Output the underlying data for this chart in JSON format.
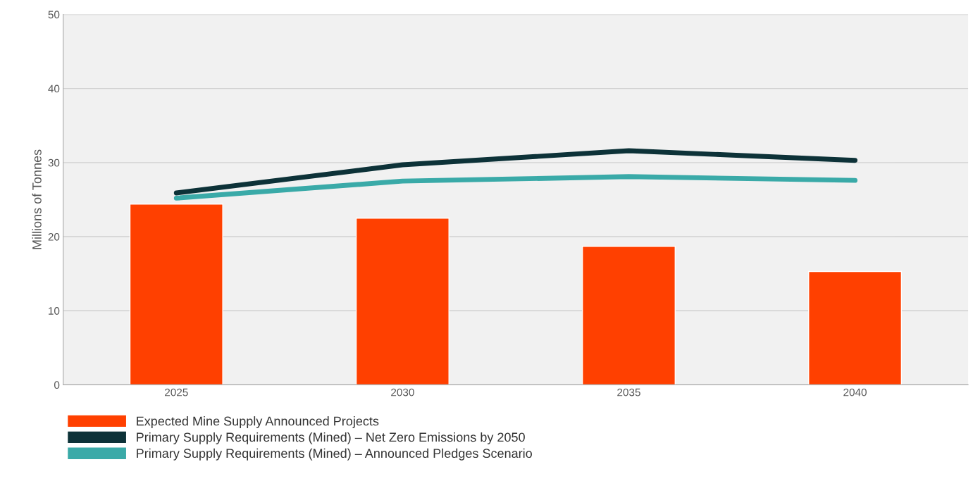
{
  "chart_data": {
    "type": "bar",
    "ylabel": "Millions of Tonnes",
    "categories": [
      "2025",
      "2030",
      "2035",
      "2040"
    ],
    "series": [
      {
        "name": "Expected Mine Supply Announced Projects",
        "color": "#ff4000",
        "values": [
          24.4,
          22.5,
          18.7,
          15.3
        ]
      },
      {
        "name": "Primary Supply Requirements (Mined) – Net Zero Emissions by 2050",
        "type": "line",
        "color": "#0d3238",
        "values": [
          25.9,
          29.7,
          31.6,
          30.3
        ]
      },
      {
        "name": "Primary Supply Requirements (Mined) – Announced Pledges Scenario",
        "type": "line",
        "color": "#3aaaa8",
        "values": [
          25.2,
          27.5,
          28.1,
          27.6
        ]
      }
    ],
    "ylim": [
      0,
      50
    ],
    "yticks": [
      0,
      10,
      20,
      30,
      40,
      50
    ],
    "grid": "y",
    "legend": "bottom left"
  }
}
